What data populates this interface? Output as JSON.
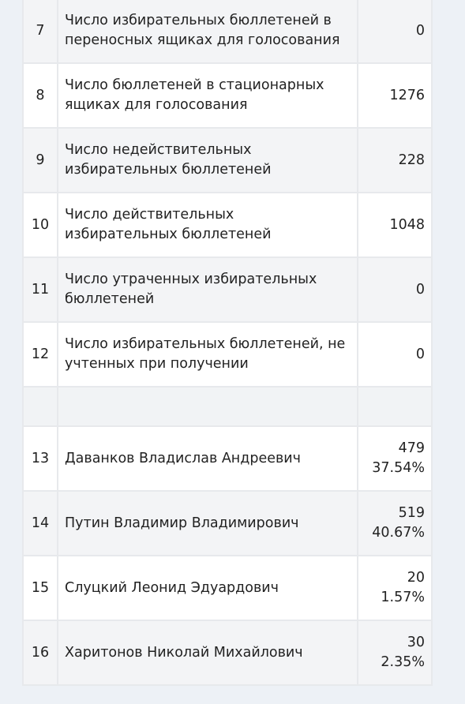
{
  "info_rows": [
    {
      "n": "7",
      "label": "Число избирательных бюллетеней в переносных ящиках для голосования",
      "value": "0"
    },
    {
      "n": "8",
      "label": "Число бюллетеней в стационарных ящиках для голосования",
      "value": "1276"
    },
    {
      "n": "9",
      "label": "Число недействительных избирательных бюллетеней",
      "value": "228"
    },
    {
      "n": "10",
      "label": "Число действительных избирательных бюллетеней",
      "value": "1048"
    },
    {
      "n": "11",
      "label": "Число утраченных избирательных бюллетеней",
      "value": "0"
    },
    {
      "n": "12",
      "label": "Число избирательных бюллетеней, не учтенных при получении",
      "value": "0"
    }
  ],
  "candidates": [
    {
      "n": "13",
      "name": "Даванков Владислав Андреевич",
      "votes": "479",
      "pct": "37.54%"
    },
    {
      "n": "14",
      "name": "Путин Владимир Владимирович",
      "votes": "519",
      "pct": "40.67%"
    },
    {
      "n": "15",
      "name": "Слуцкий Леонид Эдуардович",
      "votes": "20",
      "pct": "1.57%"
    },
    {
      "n": "16",
      "name": "Харитонов Николай Михайлович",
      "votes": "30",
      "pct": "2.35%"
    }
  ]
}
